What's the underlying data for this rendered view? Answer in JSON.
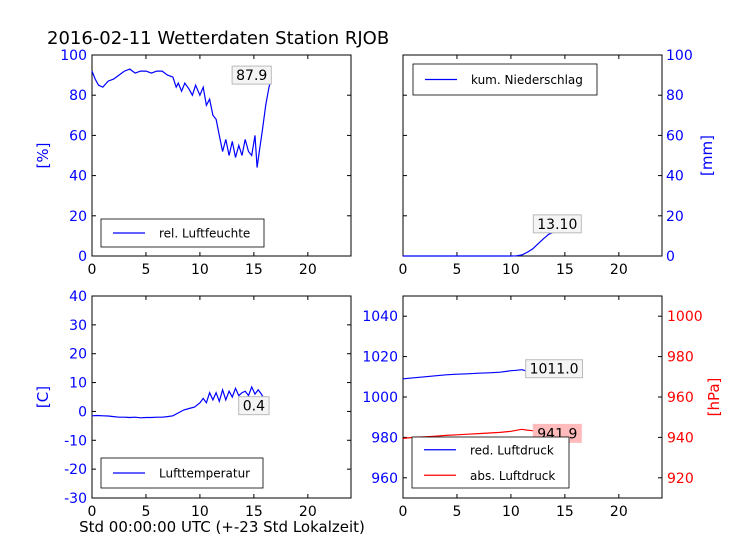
{
  "figure": {
    "title": "2016-02-11 Wetterdaten Station RJOB",
    "xlabel": "Std 00:00:00 UTC (+-23 Std Lokalzeit)"
  },
  "colors": {
    "primary": "#0000ff",
    "secondary": "#ff0000",
    "annotation_box": "#ffbbbb"
  },
  "chart_data": [
    {
      "type": "line",
      "panel": "top-left",
      "ylabel": "[%]",
      "xlim": [
        0,
        24
      ],
      "ylim": [
        0,
        100
      ],
      "xticks": [
        0,
        5,
        10,
        15,
        20
      ],
      "yticks": [
        0,
        20,
        40,
        60,
        80,
        100
      ],
      "legend": {
        "position": "bottom-left"
      },
      "series": [
        {
          "name": "rel. Luftfeuchte",
          "x": [
            0,
            0.3,
            0.6,
            1,
            1.5,
            2,
            2.5,
            3,
            3.5,
            4,
            4.5,
            5,
            5.5,
            6,
            6.5,
            7,
            7.5,
            7.8,
            8,
            8.3,
            8.6,
            9,
            9.3,
            9.6,
            10,
            10.3,
            10.6,
            10.9,
            11.2,
            11.5,
            11.8,
            12.1,
            12.4,
            12.7,
            13,
            13.3,
            13.6,
            13.9,
            14.2,
            14.5,
            14.8,
            15.1,
            15.3,
            15.5,
            15.8,
            16.1,
            16.4,
            16.6
          ],
          "y": [
            92,
            88,
            85,
            84,
            87,
            88,
            90,
            92,
            93,
            91,
            92,
            92,
            91,
            92,
            92,
            90,
            89,
            84,
            86,
            82,
            86,
            83,
            80,
            85,
            80,
            84,
            75,
            78,
            70,
            68,
            60,
            52,
            58,
            50,
            57,
            49,
            55,
            50,
            58,
            52,
            50,
            60,
            44,
            52,
            63,
            75,
            84,
            87.9
          ]
        }
      ],
      "annotations": [
        {
          "text": "87.9",
          "x": 14.8,
          "y": 90
        }
      ]
    },
    {
      "type": "line",
      "panel": "top-right",
      "ylabel": "[mm]",
      "xlim": [
        0,
        24
      ],
      "ylim": [
        0,
        100
      ],
      "xticks": [
        0,
        5,
        10,
        15,
        20
      ],
      "yticks": [
        0,
        20,
        40,
        60,
        80,
        100
      ],
      "y_axis_side": "right",
      "legend": {
        "position": "top-left"
      },
      "series": [
        {
          "name": "kum. Niederschlag",
          "x": [
            0,
            2,
            4,
            6,
            8,
            10,
            10.5,
            11,
            11.5,
            12,
            12.5,
            13,
            13.5,
            14,
            14.5,
            15,
            15.5,
            16,
            16.5
          ],
          "y": [
            0,
            0,
            0,
            0,
            0,
            0,
            0.1,
            0.5,
            1.8,
            3.5,
            6.0,
            8.5,
            10.8,
            12.0,
            12.8,
            13.1,
            13.1,
            13.1,
            13.1
          ]
        }
      ],
      "annotations": [
        {
          "text": "13.10",
          "x": 14.3,
          "y": 16
        }
      ]
    },
    {
      "type": "line",
      "panel": "bottom-left",
      "ylabel": "[C]",
      "xlim": [
        0,
        24
      ],
      "ylim": [
        -30,
        40
      ],
      "xticks": [
        0,
        5,
        10,
        15,
        20
      ],
      "yticks": [
        -30,
        -20,
        -10,
        0,
        10,
        20,
        30,
        40
      ],
      "legend": {
        "position": "bottom-left"
      },
      "series": [
        {
          "name": "Lufttemperatur",
          "x": [
            0,
            0.5,
            1,
            1.5,
            2,
            2.5,
            3,
            3.5,
            4,
            4.5,
            5,
            5.5,
            6,
            6.5,
            7,
            7.5,
            8,
            8.5,
            9,
            9.5,
            10,
            10.3,
            10.6,
            10.9,
            11.2,
            11.5,
            11.8,
            12.1,
            12.4,
            12.7,
            13,
            13.3,
            13.6,
            13.9,
            14.2,
            14.5,
            14.8,
            15.1,
            15.4,
            15.7,
            16,
            16.3
          ],
          "y": [
            -1.5,
            -1.4,
            -1.5,
            -1.6,
            -1.8,
            -2.0,
            -2.0,
            -2.1,
            -2.0,
            -2.2,
            -2.1,
            -2.1,
            -2.0,
            -2.0,
            -1.8,
            -1.5,
            -0.5,
            0.5,
            1.0,
            1.5,
            3.0,
            4.5,
            3.0,
            6.5,
            4.0,
            6.5,
            3.5,
            7.5,
            4.0,
            7.0,
            5.0,
            8.0,
            5.5,
            6.5,
            7.0,
            5.5,
            8.5,
            6.0,
            7.5,
            6.0,
            4.0,
            0.4
          ]
        }
      ],
      "annotations": [
        {
          "text": "0.4",
          "x": 15.0,
          "y": 2.0
        }
      ]
    },
    {
      "type": "line",
      "panel": "bottom-right",
      "ylabel": "[hPa]",
      "xlim": [
        0,
        24
      ],
      "ylim": [
        950,
        1050
      ],
      "xticks": [
        0,
        5,
        10,
        15,
        20
      ],
      "yticks": [
        960,
        980,
        1000,
        1020,
        1040
      ],
      "secondary_ylim": [
        910,
        1010
      ],
      "secondary_yticks": [
        920,
        940,
        960,
        980,
        1000
      ],
      "legend": {
        "position": "bottom-left"
      },
      "series": [
        {
          "name": "red. Luftdruck",
          "axis": "left",
          "x": [
            0,
            1,
            2,
            3,
            4,
            5,
            6,
            7,
            8,
            9,
            10,
            10.5,
            11,
            11.5,
            12,
            13,
            14,
            15,
            16,
            16.5
          ],
          "y": [
            1009,
            1009.5,
            1010,
            1010.5,
            1011,
            1011.3,
            1011.5,
            1011.8,
            1012,
            1012.3,
            1013,
            1013.2,
            1013.5,
            1012.8,
            1012,
            1011.5,
            1011.3,
            1011.1,
            1011,
            1011.0
          ]
        },
        {
          "name": "abs. Luftdruck",
          "axis": "right",
          "x": [
            0,
            1,
            2,
            3,
            4,
            5,
            6,
            7,
            8,
            9,
            10,
            10.5,
            11,
            11.5,
            12,
            13,
            14,
            15,
            16,
            16.5
          ],
          "y": [
            939.5,
            940,
            940.3,
            940.6,
            941,
            941.3,
            941.6,
            941.9,
            942.2,
            942.5,
            943,
            943.5,
            944,
            943.6,
            943.3,
            942.9,
            942.5,
            942.2,
            942.0,
            941.9
          ]
        }
      ],
      "annotations": [
        {
          "text": "1011.0",
          "axis": "left",
          "x": 14.0,
          "y": 1014
        },
        {
          "text": "941.9",
          "axis": "right",
          "x": 14.3,
          "y": 942,
          "highlight": true
        }
      ]
    }
  ]
}
